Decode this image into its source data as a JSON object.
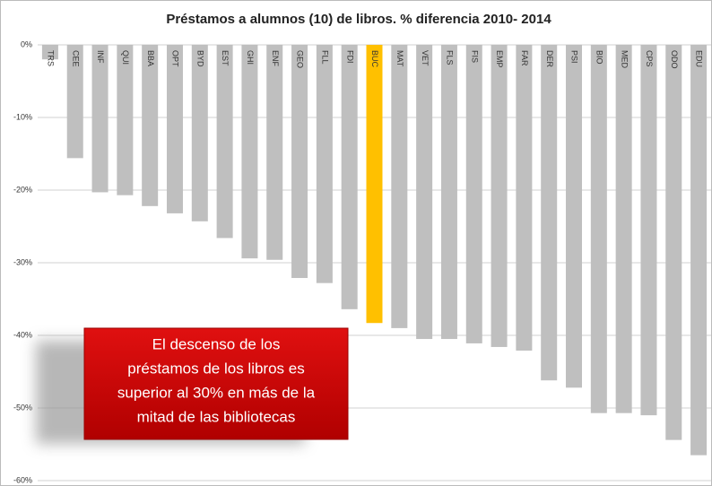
{
  "chart_data": {
    "type": "bar",
    "title": "Préstamos a alumnos (10) de libros. % diferencia 2010- 2014",
    "categories": [
      "TRS",
      "CEE",
      "INF",
      "QUI",
      "BBA",
      "OPT",
      "BYD",
      "EST",
      "GHI",
      "ENF",
      "GEO",
      "FLL",
      "FDI",
      "BUC",
      "MAT",
      "VET",
      "FLS",
      "FIS",
      "EMP",
      "FAR",
      "DER",
      "PSI",
      "BIO",
      "MED",
      "CPS",
      "ODO",
      "EDU"
    ],
    "values": [
      -2,
      -15.6,
      -20.3,
      -20.7,
      -22.2,
      -23.2,
      -24.3,
      -26.6,
      -29.4,
      -29.6,
      -32.1,
      -32.8,
      -36.4,
      -38.3,
      -39.0,
      -40.5,
      -40.5,
      -41.1,
      -41.6,
      -42.1,
      -46.2,
      -47.2,
      -50.7,
      -50.7,
      -51.0,
      -54.4,
      -56.5
    ],
    "colors": [
      "#bfbfbf",
      "#bfbfbf",
      "#bfbfbf",
      "#bfbfbf",
      "#bfbfbf",
      "#bfbfbf",
      "#bfbfbf",
      "#bfbfbf",
      "#bfbfbf",
      "#bfbfbf",
      "#bfbfbf",
      "#bfbfbf",
      "#bfbfbf",
      "#ffc000",
      "#bfbfbf",
      "#bfbfbf",
      "#bfbfbf",
      "#bfbfbf",
      "#bfbfbf",
      "#bfbfbf",
      "#bfbfbf",
      "#bfbfbf",
      "#bfbfbf",
      "#bfbfbf",
      "#bfbfbf",
      "#bfbfbf",
      "#bfbfbf"
    ],
    "ylim": [
      -60,
      0
    ],
    "yticks": [
      {
        "value": 0,
        "label": "0%"
      },
      {
        "value": -10,
        "label": "-10%"
      },
      {
        "value": -20,
        "label": "-20%"
      },
      {
        "value": -30,
        "label": "-30%"
      },
      {
        "value": -40,
        "label": "-40%"
      },
      {
        "value": -50,
        "label": "-50%"
      },
      {
        "value": -60,
        "label": "-60%"
      }
    ],
    "grid": true,
    "annotation": [
      "El descenso de los",
      "préstamos de los libros  es",
      "superior al 30% en más de la",
      "mitad de las bibliotecas"
    ]
  }
}
